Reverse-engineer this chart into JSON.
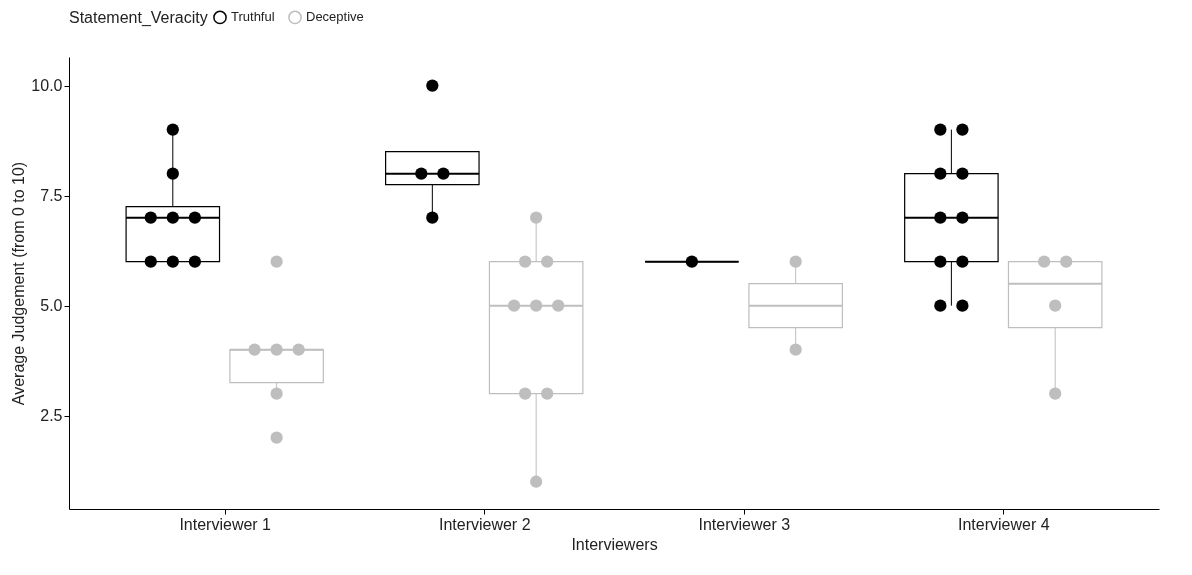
{
  "chart_data": {
    "type": "box",
    "xlabel": "Interviewers",
    "ylabel": "Average Judgement (from 0 to 10)",
    "legend_title": "Statement_Veracity",
    "legend": "top",
    "grid": false,
    "categories": [
      "Interviewer 1",
      "Interviewer 2",
      "Interviewer 3",
      "Interviewer 4"
    ],
    "ylim": [
      0.38,
      10.65
    ],
    "yticks": [
      {
        "value": 2.5,
        "label": "2.5"
      },
      {
        "value": 5,
        "label": "5.0"
      },
      {
        "value": 7.5,
        "label": "7.5"
      },
      {
        "value": 10,
        "label": "10.0"
      }
    ],
    "series": [
      {
        "name": "Truthful",
        "color": "#000000",
        "boxes": [
          {
            "low": 6,
            "q1": 6,
            "median": 7,
            "q3": 7.25,
            "high": 9
          },
          {
            "low": 7,
            "q1": 7.75,
            "median": 8,
            "q3": 8.5,
            "high": 8.5
          },
          {
            "low": 6,
            "q1": 6,
            "median": 6,
            "q3": 6,
            "high": 6
          },
          {
            "low": 5,
            "q1": 6,
            "median": 7,
            "q3": 8,
            "high": 9
          }
        ]
      },
      {
        "name": "Deceptive",
        "color": "#bebebe",
        "boxes": [
          {
            "low": 3,
            "q1": 3.25,
            "median": 4,
            "q3": 4,
            "high": 4
          },
          {
            "low": 1,
            "q1": 3,
            "median": 5,
            "q3": 6,
            "high": 7
          },
          {
            "low": 4,
            "q1": 4.5,
            "median": 5,
            "q3": 5.5,
            "high": 6
          },
          {
            "low": 3,
            "q1": 4.5,
            "median": 5.5,
            "q3": 6,
            "high": 6
          }
        ]
      },
      {
        "type": "scatter",
        "color": "#000000",
        "marker": "circle",
        "x": [
          "Interviewer 1",
          "Interviewer 1",
          "Interviewer 1",
          "Interviewer 1",
          "Interviewer 1",
          "Interviewer 1",
          "Interviewer 1",
          "Interviewer 1",
          "Interviewer 2",
          "Interviewer 2",
          "Interviewer 2",
          "Interviewer 2",
          "Interviewer 3",
          "Interviewer 4",
          "Interviewer 4",
          "Interviewer 4",
          "Interviewer 4",
          "Interviewer 4",
          "Interviewer 4",
          "Interviewer 4",
          "Interviewer 4",
          "Interviewer 4",
          "Interviewer 4"
        ],
        "values": [
          9,
          8,
          7,
          7,
          7,
          6,
          6,
          6,
          10,
          8,
          8,
          7,
          6,
          9,
          9,
          8,
          8,
          7,
          7,
          6,
          6,
          5,
          5
        ]
      },
      {
        "type": "scatter",
        "color": "#bebebe",
        "marker": "circle",
        "x": [
          "Interviewer 1",
          "Interviewer 1",
          "Interviewer 1",
          "Interviewer 1",
          "Interviewer 1",
          "Interviewer 1",
          "Interviewer 2",
          "Interviewer 2",
          "Interviewer 2",
          "Interviewer 2",
          "Interviewer 2",
          "Interviewer 2",
          "Interviewer 2",
          "Interviewer 2",
          "Interviewer 2",
          "Interviewer 3",
          "Interviewer 3",
          "Interviewer 4",
          "Interviewer 4",
          "Interviewer 4",
          "Interviewer 4"
        ],
        "values": [
          6,
          4,
          4,
          4,
          3,
          2,
          7,
          6,
          6,
          5,
          5,
          5,
          3,
          3,
          1,
          6,
          4,
          6,
          6,
          5,
          3
        ]
      }
    ]
  }
}
